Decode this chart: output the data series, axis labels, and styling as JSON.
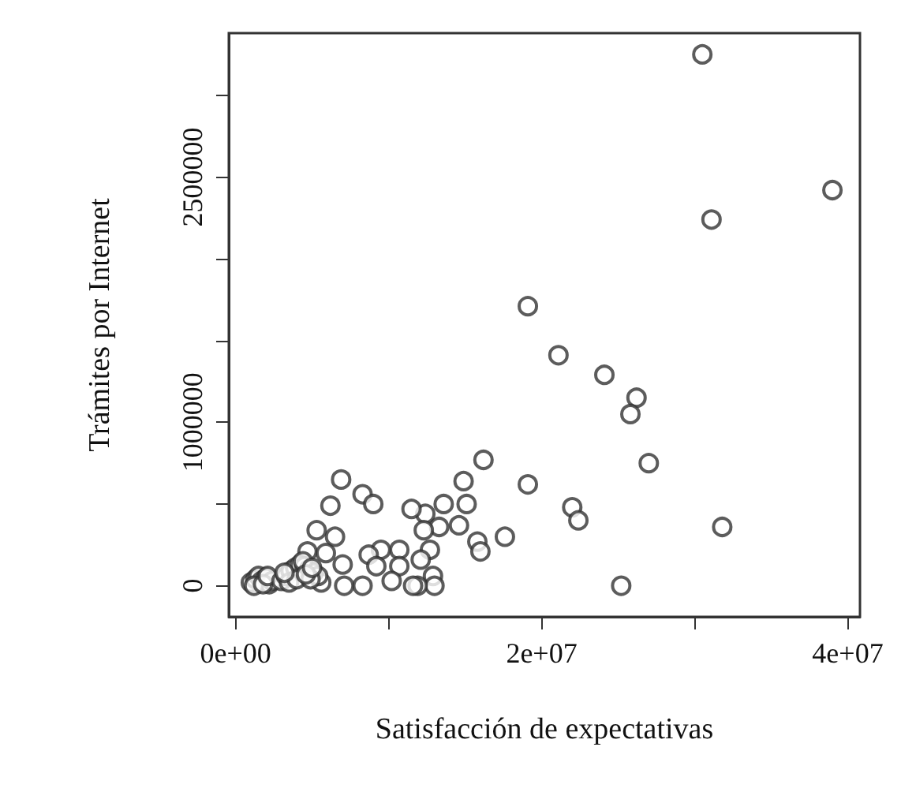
{
  "chart_data": {
    "type": "scatter",
    "xlabel": "Satisfacción de expectativas",
    "ylabel": "Trámites por Internet",
    "xlim": [
      -440000,
      40800000
    ],
    "ylim": [
      -190000,
      3380000
    ],
    "xticks": [
      {
        "value": 0,
        "label": "0e+00"
      },
      {
        "value": 10000000,
        "label": null
      },
      {
        "value": 20000000,
        "label": "2e+07"
      },
      {
        "value": 30000000,
        "label": null
      },
      {
        "value": 40000000,
        "label": "4e+07"
      }
    ],
    "yticks": [
      0,
      {
        "value": 500000,
        "label": null
      },
      1000000,
      {
        "value": 1500000,
        "label": null
      },
      {
        "value": 2000000,
        "label": null
      },
      2500000,
      {
        "value": 3000000,
        "label": null
      }
    ],
    "marker": "circle",
    "series": [
      {
        "color": "#333333",
        "x": [
          30500000,
          39000000,
          31100000,
          19100000,
          21100000,
          24100000,
          26200000,
          25800000,
          27000000,
          16200000,
          14900000,
          19100000,
          22000000,
          22400000,
          31800000,
          25200000,
          17600000,
          15800000,
          16000000,
          14600000,
          15100000,
          13600000,
          13300000,
          12400000,
          11500000,
          12300000,
          12700000,
          12100000,
          12900000,
          13000000,
          11900000,
          11600000,
          10700000,
          10700000,
          10200000,
          9500000,
          8700000,
          9200000,
          6900000,
          8300000,
          9000000,
          6200000,
          5300000,
          6500000,
          4700000,
          5900000,
          7000000,
          7100000,
          8300000,
          5600000,
          1000000,
          1300000,
          1500000,
          1700000,
          2000000,
          2200000,
          2400000,
          1200000,
          1800000,
          2100000,
          3000000,
          3300000,
          3600000,
          3900000,
          4200000,
          4500000,
          4800000,
          5100000,
          5400000,
          3500000,
          4000000,
          4400000,
          4900000,
          3200000,
          4600000,
          5000000
        ],
        "values": [
          3250000,
          2420000,
          2240000,
          1710000,
          1410000,
          1290000,
          1150000,
          1050000,
          750000,
          770000,
          640000,
          620000,
          480000,
          400000,
          360000,
          0,
          300000,
          270000,
          210000,
          370000,
          500000,
          500000,
          360000,
          440000,
          470000,
          340000,
          220000,
          160000,
          60000,
          0,
          0,
          0,
          220000,
          120000,
          30000,
          220000,
          190000,
          120000,
          650000,
          560000,
          500000,
          490000,
          340000,
          300000,
          210000,
          200000,
          130000,
          0,
          0,
          20000,
          20000,
          40000,
          60000,
          30000,
          50000,
          10000,
          30000,
          0,
          10000,
          60000,
          30000,
          60000,
          90000,
          110000,
          130000,
          120000,
          100000,
          80000,
          60000,
          20000,
          40000,
          150000,
          40000,
          80000,
          70000,
          110000
        ]
      }
    ]
  }
}
